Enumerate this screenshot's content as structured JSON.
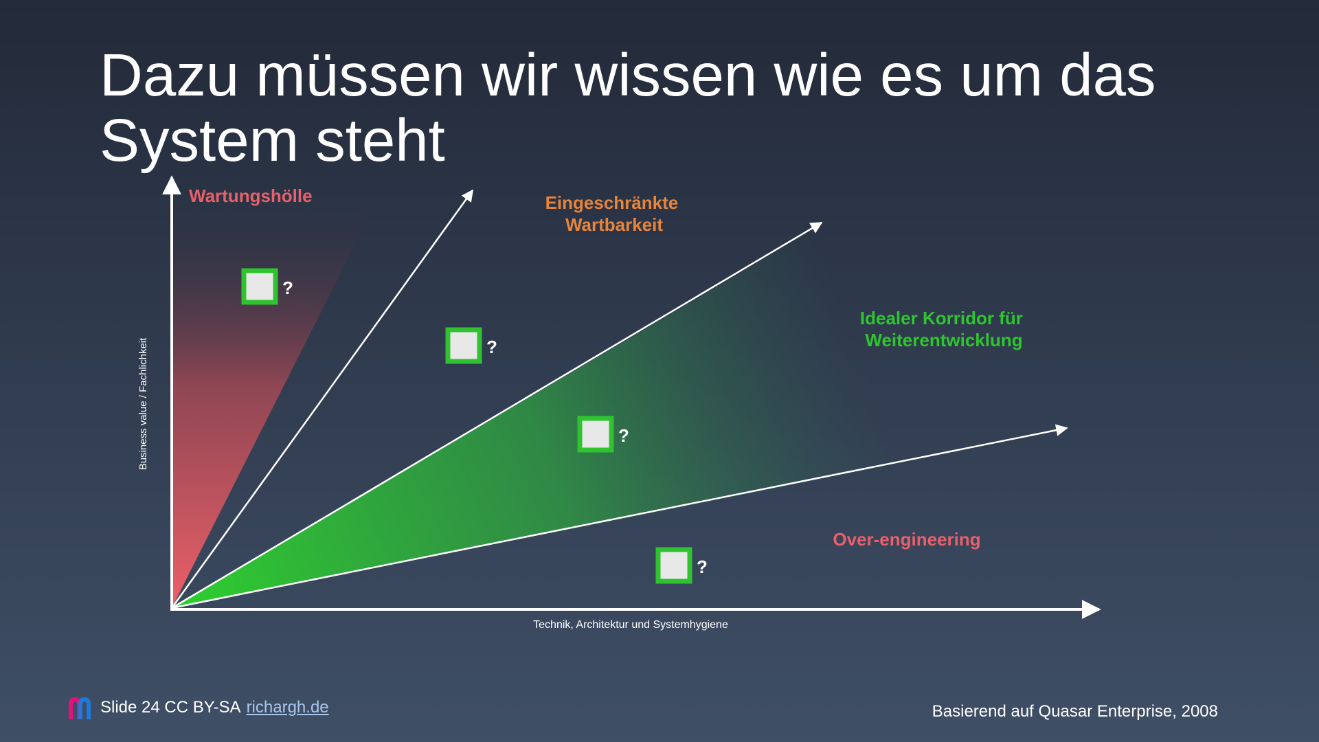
{
  "slide": {
    "title_line1": "Dazu müssen wir wissen wie es um das",
    "title_line2": "System steht"
  },
  "diagram": {
    "y_axis_label": "Business value / Fachlichkeit",
    "x_axis_label": "Technik, Architektur und Systemhygiene",
    "regions": {
      "maintenance_hell": "Wartungshölle",
      "limited_maintainability_line1": "Eingeschränkte",
      "limited_maintainability_line2": "Wartbarkeit",
      "ideal_corridor_line1": "Idealer Korridor für",
      "ideal_corridor_line2": "Weiterentwicklung",
      "over_engineering": "Over-engineering"
    },
    "markers": [
      {
        "label": "?"
      },
      {
        "label": "?"
      },
      {
        "label": "?"
      },
      {
        "label": "?"
      }
    ],
    "colors": {
      "red_region": "#e8606a",
      "orange_label": "#e8843c",
      "green_region": "#2ec02e",
      "marker_border": "#2fc42f",
      "marker_fill": "#e8e8e8",
      "axis": "#ffffff"
    }
  },
  "footer": {
    "slide_text": "Slide 24 CC BY-SA",
    "link_text": "richargh.de",
    "source": "Basierend auf Quasar Enterprise, 2008"
  }
}
